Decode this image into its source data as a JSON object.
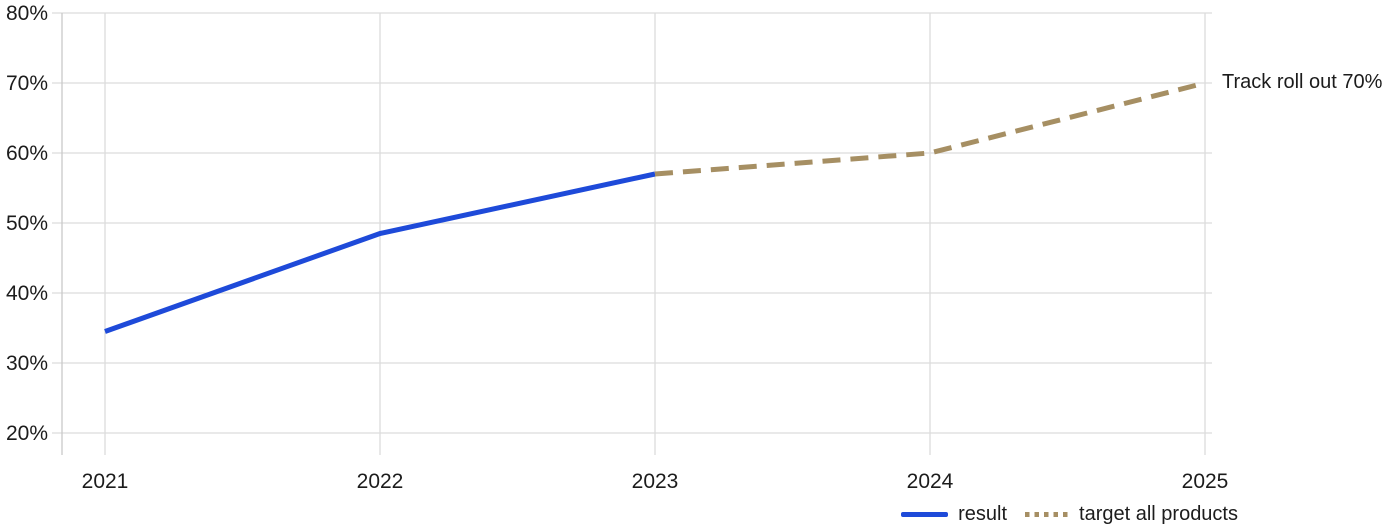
{
  "chart_data": {
    "type": "line",
    "x": [
      2021,
      2022,
      2023,
      2024,
      2025
    ],
    "xtick_labels": [
      "2021",
      "2022",
      "2023",
      "2024",
      "2025"
    ],
    "yticks": [
      20,
      30,
      40,
      50,
      60,
      70,
      80
    ],
    "ytick_labels": [
      "20%",
      "30%",
      "40%",
      "50%",
      "60%",
      "70%",
      "80%"
    ],
    "ylim": [
      20,
      80
    ],
    "grid": true,
    "legend_position": "bottom-right",
    "series": [
      {
        "name": "result",
        "x": [
          2021,
          2022,
          2023
        ],
        "values": [
          34.5,
          48.5,
          57
        ],
        "color": "#1e4ad9",
        "line_style": "solid"
      },
      {
        "name": "target all products",
        "x": [
          2023,
          2024,
          2025
        ],
        "values": [
          57,
          60,
          70
        ],
        "color": "#a68f63",
        "line_style": "dashed"
      }
    ],
    "annotation": {
      "text": "Track roll out 70%",
      "at_value": 70
    },
    "colors": {
      "grid": "#dcdcdc",
      "axis_line": "#c9c9c9",
      "text": "#1c1c1c",
      "background": "#ffffff"
    }
  }
}
